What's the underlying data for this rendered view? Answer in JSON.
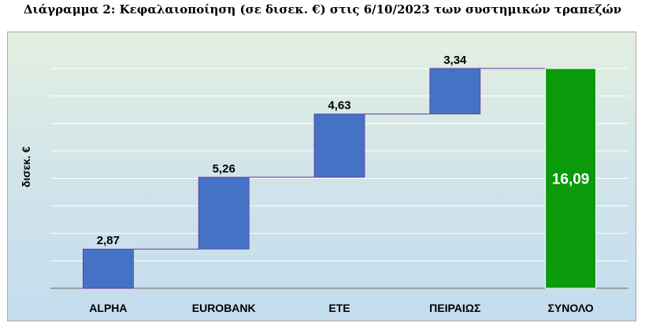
{
  "chart_data": {
    "type": "waterfall",
    "title": "Διάγραμμα 2: Κεφαλαιοποίηση (σε δισεκ. €) στις 6/10/2023 των συστημικών τραπεζών",
    "ylabel": "δισεκ. €",
    "xlabel": "",
    "categories": [
      "ALPHA",
      "EUROBANK",
      "ΕΤΕ",
      "ΠΕΙΡΑΙΩΣ",
      "ΣΥΝΟΛΟ"
    ],
    "values": [
      2.87,
      5.26,
      4.63,
      3.34,
      16.09
    ],
    "data_labels": [
      "2,87",
      "5,26",
      "4,63",
      "3,34",
      "16,09"
    ],
    "total_index": 4,
    "ylim": [
      0,
      16.09
    ],
    "grid": true,
    "legend": "none",
    "colors": {
      "step": "#4472c4",
      "total": "#0a9a0a",
      "step_border": "#7030a0",
      "connector": "#7030a0"
    }
  }
}
